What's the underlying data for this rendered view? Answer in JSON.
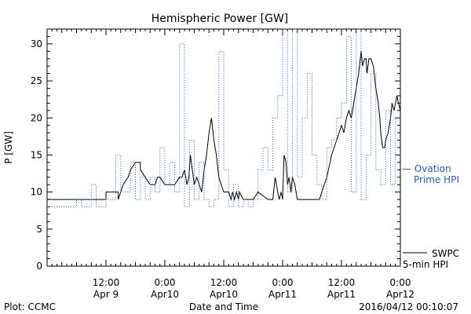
{
  "chart_data": {
    "type": "line",
    "title": "Hemispheric Power [GW]",
    "ylabel": "P [GW]",
    "xlabel": "Date and Time",
    "ylim": [
      0,
      32
    ],
    "y_ticks": [
      0,
      5,
      10,
      15,
      20,
      25,
      30
    ],
    "x_range_hours": [
      0,
      72
    ],
    "x_ticks": [
      {
        "x": 12,
        "line1": "12:00",
        "line2": "Apr 9"
      },
      {
        "x": 24,
        "line1": "0:00",
        "line2": "Apr10"
      },
      {
        "x": 36,
        "line1": "12:00",
        "line2": "Apr10"
      },
      {
        "x": 48,
        "line1": "0:00",
        "line2": "Apr11"
      },
      {
        "x": 60,
        "line1": "12:00",
        "line2": "Apr11"
      },
      {
        "x": 72,
        "line1": "0:00",
        "line2": "Apr12"
      }
    ],
    "series": [
      {
        "label_lines": [
          "SWPC",
          "5-min HPI"
        ],
        "color": "#000000",
        "style": "solid",
        "x": [
          0,
          12,
          12,
          14.5,
          14.5,
          15.5,
          16.5,
          17,
          18,
          19,
          19,
          21,
          22,
          22.5,
          23,
          24,
          24,
          26,
          27,
          27.5,
          28,
          28.5,
          28.9,
          29.2,
          29.6,
          30,
          30.5,
          31,
          31.5,
          32,
          32.5,
          33,
          33.5,
          34,
          34.5,
          35,
          35.5,
          36,
          36.5,
          37,
          37.5,
          37.8,
          38.2,
          38.6,
          39,
          39.2,
          40,
          42,
          43,
          45,
          46,
          46.5,
          47,
          47.3,
          47.7,
          48,
          48.3,
          48.7,
          49,
          49.3,
          49.7,
          50,
          50.5,
          51,
          52,
          55.5,
          56,
          57,
          58,
          59,
          60,
          60.5,
          61,
          61.5,
          62,
          62.5,
          63,
          63.5,
          64,
          64.3,
          64.7,
          65,
          65.2,
          65.6,
          66,
          66.5,
          67,
          67.5,
          67.8,
          68,
          68.4,
          68.8,
          69,
          69.5,
          70,
          70.3,
          70.7,
          71,
          71.3,
          71.6,
          72
        ],
        "y": [
          9,
          9,
          10,
          10,
          9,
          11,
          12,
          13,
          14,
          14,
          13,
          11,
          11,
          12,
          12,
          11,
          11,
          11,
          12,
          12,
          13,
          11,
          12,
          15,
          13,
          11,
          12,
          11,
          10,
          13,
          15,
          18,
          20,
          17,
          15,
          12,
          11,
          10,
          10,
          10,
          9,
          10,
          9,
          10,
          9,
          10,
          9,
          9,
          10,
          9,
          9,
          12,
          10,
          9,
          10,
          9,
          15,
          14,
          11,
          12,
          10,
          12,
          11,
          9,
          9,
          9,
          10,
          12,
          15,
          17,
          19,
          18,
          20,
          21,
          20,
          22,
          24,
          26,
          29,
          27,
          28,
          28,
          26,
          28,
          28,
          27,
          24,
          22,
          20,
          18,
          16,
          16,
          17,
          18,
          20,
          22,
          21,
          22,
          23,
          22,
          21
        ]
      },
      {
        "label_lines": [
          "— Ovation",
          "Prime HPI"
        ],
        "color": "#1f5fc4",
        "style": "dotted",
        "x": [
          0,
          6,
          6,
          7,
          7,
          9,
          9,
          10,
          10,
          12,
          12,
          14,
          14,
          15,
          15,
          17,
          17,
          18,
          18,
          19,
          19,
          20,
          20,
          21,
          21,
          22,
          22,
          23,
          23,
          24,
          24,
          25,
          25,
          26,
          26,
          27,
          27,
          28,
          28,
          29,
          29,
          30,
          30,
          31,
          31,
          32,
          32,
          33,
          33,
          34,
          34,
          35,
          35,
          36,
          36,
          37,
          37,
          38,
          38,
          39,
          39,
          40,
          40,
          41,
          41,
          42,
          42,
          43,
          43,
          44,
          44,
          45,
          45,
          46,
          46,
          47,
          47,
          48,
          48,
          49,
          49,
          50,
          50,
          51,
          51,
          52,
          52,
          53,
          53,
          54,
          54,
          55,
          55,
          56,
          56,
          57,
          57,
          58,
          58,
          59,
          59,
          60,
          60,
          61,
          61,
          62,
          62,
          63,
          63,
          64,
          64,
          65,
          65,
          66,
          66,
          67,
          67,
          68,
          68,
          69,
          69,
          70,
          70,
          71,
          71,
          72
        ],
        "y": [
          8,
          8,
          9,
          9,
          8,
          8,
          11,
          11,
          8,
          8,
          9,
          9,
          15,
          15,
          10,
          10,
          14,
          14,
          9,
          9,
          12,
          12,
          9,
          9,
          12,
          12,
          10,
          10,
          16,
          16,
          11,
          11,
          14,
          14,
          10,
          10,
          30,
          30,
          8,
          8,
          17,
          17,
          9,
          9,
          14,
          14,
          9,
          9,
          8,
          8,
          9,
          9,
          29,
          29,
          13,
          13,
          8,
          8,
          11,
          11,
          8,
          8,
          9,
          9,
          8,
          8,
          9,
          9,
          13,
          13,
          16,
          16,
          13,
          13,
          20,
          20,
          23,
          23,
          32,
          32,
          10,
          10,
          32,
          32,
          12,
          12,
          20,
          20,
          26,
          26,
          15,
          15,
          11,
          11,
          9,
          9,
          16,
          16,
          17,
          17,
          20,
          20,
          22,
          22,
          31,
          31,
          10,
          10,
          32,
          32,
          9,
          9,
          15,
          15,
          26,
          26,
          13,
          13,
          11,
          11,
          21,
          21,
          11,
          11,
          20,
          20
        ]
      }
    ]
  },
  "footer": {
    "left": "Plot: CCMC",
    "right": "2016/04/12 00:10:07"
  }
}
